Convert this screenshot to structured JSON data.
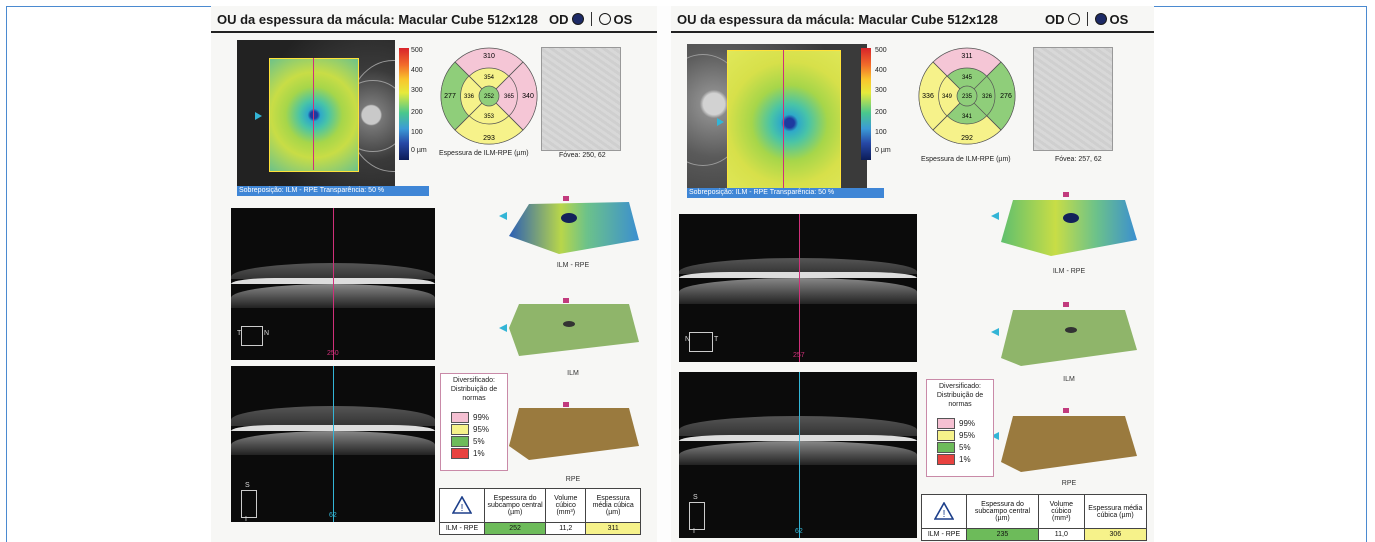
{
  "left_page": {
    "title": "OU da espessura da mácula: Macular Cube 512x128",
    "od_label": "OD",
    "os_label": "OS",
    "selected_eye": "OD",
    "colorbar_ticks": [
      "500",
      "400",
      "300",
      "200",
      "100",
      "0 µm"
    ],
    "overlay_text": "Sobreposição: ILM - RPE  Transparência: 50 %",
    "etdrs_values": {
      "top": "310",
      "left": "277",
      "right": "340",
      "bottom": "293",
      "inner_top": "354",
      "inner_left": "336",
      "inner_right": "365",
      "inner_bottom": "353",
      "center": "252"
    },
    "etdrs_caption": "Espessura de ILM-RPE (µm)",
    "fovea_text": "Fóvea: 250, 62",
    "bscan1_marker": "250",
    "bscan1_orient": [
      "T",
      "N"
    ],
    "bscan2_marker": "62",
    "bscan2_orient": [
      "S",
      "I"
    ],
    "surface_labels": [
      "ILM - RPE",
      "ILM",
      "RPE"
    ],
    "legend_title": "Diversificado: Distribuição de normas",
    "legend_items": [
      {
        "label": "99%",
        "color": "#f5c0d2"
      },
      {
        "label": "95%",
        "color": "#f6f28a"
      },
      {
        "label": "5%",
        "color": "#6dbb5a"
      },
      {
        "label": "1%",
        "color": "#e8423f"
      }
    ],
    "table": {
      "headers": [
        "Espessura do subcampo central (µm)",
        "Volume cúbico (mm³)",
        "Espessura média cúbica (µm)"
      ],
      "row_label": "ILM - RPE",
      "values": [
        "252",
        "11,2",
        "311"
      ]
    }
  },
  "right_page": {
    "title": "OU da espessura da mácula: Macular Cube 512x128",
    "od_label": "OD",
    "os_label": "OS",
    "selected_eye": "OS",
    "colorbar_ticks": [
      "500",
      "400",
      "300",
      "200",
      "100",
      "0 µm"
    ],
    "overlay_text": "Sobreposição: ILM - RPE  Transparência: 50 %",
    "etdrs_values": {
      "top": "311",
      "left": "336",
      "right": "276",
      "bottom": "292",
      "inner_top": "345",
      "inner_left": "349",
      "inner_right": "326",
      "inner_bottom": "341",
      "center": "235"
    },
    "etdrs_caption": "Espessura de ILM-RPE (µm)",
    "fovea_text": "Fóvea: 257, 62",
    "bscan1_marker": "257",
    "bscan1_orient": [
      "N",
      "T"
    ],
    "bscan2_marker": "62",
    "bscan2_orient": [
      "S",
      "I"
    ],
    "surface_labels": [
      "ILM - RPE",
      "ILM",
      "RPE"
    ],
    "legend_title": "Diversificado: Distribuição de normas",
    "legend_items": [
      {
        "label": "99%",
        "color": "#f5c0d2"
      },
      {
        "label": "95%",
        "color": "#f6f28a"
      },
      {
        "label": "5%",
        "color": "#6dbb5a"
      },
      {
        "label": "1%",
        "color": "#e8423f"
      }
    ],
    "table": {
      "headers": [
        "Espessura do subcampo central (µm)",
        "Volume cúbico (mm³)",
        "Espessura média cúbica (µm)"
      ],
      "row_label": "ILM - RPE",
      "values": [
        "235",
        "11,0",
        "306"
      ]
    }
  },
  "colors": {
    "frame": "#4b8ad0",
    "overlay_bar": "#3f86d6",
    "od_dot": "#1d2a66",
    "pink_line": "#d0307a",
    "cyan_line": "#33b5d6"
  }
}
